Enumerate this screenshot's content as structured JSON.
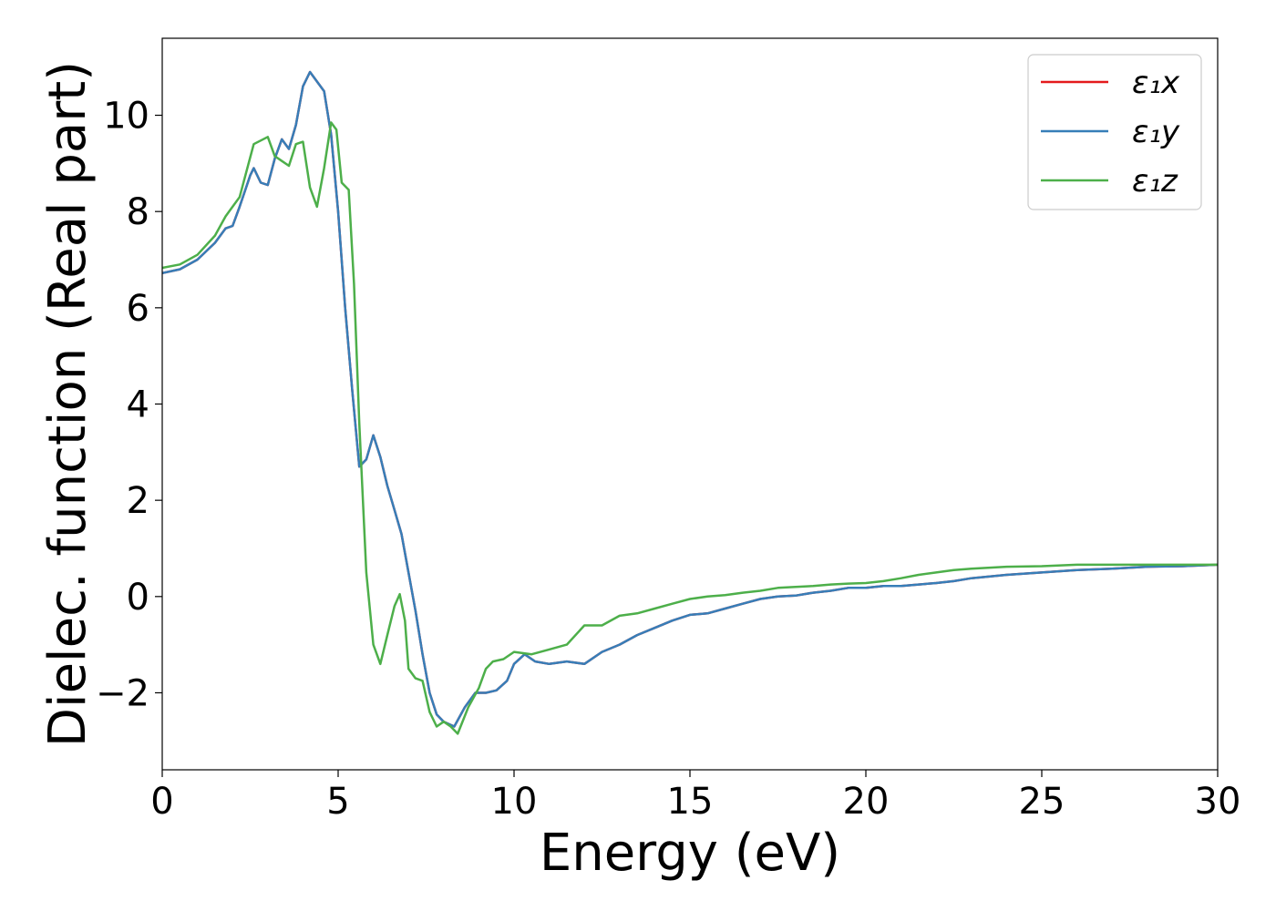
{
  "chart_data": {
    "type": "line",
    "title": "",
    "xlabel": "Energy (eV)",
    "ylabel": "Dielec. function (Real part)",
    "xlim": [
      0,
      30
    ],
    "ylim": [
      -3.6,
      11.6
    ],
    "xticks": [
      0,
      5,
      10,
      15,
      20,
      25,
      30
    ],
    "xtick_labels": [
      "0",
      "5",
      "10",
      "15",
      "20",
      "25",
      "30"
    ],
    "yticks": [
      -2,
      0,
      2,
      4,
      6,
      8,
      10
    ],
    "ytick_labels": [
      "−2",
      "0",
      "2",
      "4",
      "6",
      "8",
      "10"
    ],
    "grid": false,
    "legend_position": "top-right",
    "series": [
      {
        "name": "ε₁x",
        "color": "#e41a1c",
        "x": [
          0,
          0.5,
          1.0,
          1.5,
          1.8,
          2.0,
          2.2,
          2.5,
          2.6,
          2.8,
          3.0,
          3.2,
          3.4,
          3.6,
          3.8,
          4.0,
          4.2,
          4.4,
          4.6,
          4.8,
          5.0,
          5.2,
          5.4,
          5.6,
          5.8,
          6.0,
          6.2,
          6.4,
          6.6,
          6.8,
          7.0,
          7.2,
          7.4,
          7.6,
          7.8,
          8.0,
          8.3,
          8.6,
          8.9,
          9.2,
          9.5,
          9.8,
          10.0,
          10.3,
          10.6,
          11.0,
          11.5,
          12.0,
          12.5,
          13.0,
          13.5,
          14.0,
          14.5,
          15.0,
          15.5,
          16.0,
          16.5,
          17.0,
          17.5,
          18.0,
          18.5,
          19.0,
          19.5,
          20.0,
          20.5,
          21.0,
          21.5,
          22.0,
          22.5,
          23.0,
          24.0,
          25.0,
          26.0,
          27.0,
          28.0,
          29.0,
          30.0
        ],
        "y": [
          6.72,
          6.8,
          7.0,
          7.35,
          7.65,
          7.7,
          8.1,
          8.75,
          8.9,
          8.6,
          8.55,
          9.1,
          9.5,
          9.3,
          9.8,
          10.6,
          10.9,
          10.7,
          10.5,
          9.6,
          8.0,
          6.0,
          4.3,
          2.7,
          2.85,
          3.35,
          2.9,
          2.3,
          1.8,
          1.3,
          0.5,
          -0.3,
          -1.2,
          -2.0,
          -2.45,
          -2.6,
          -2.7,
          -2.3,
          -2.0,
          -2.0,
          -1.95,
          -1.75,
          -1.4,
          -1.2,
          -1.35,
          -1.4,
          -1.35,
          -1.4,
          -1.15,
          -1.0,
          -0.8,
          -0.65,
          -0.5,
          -0.38,
          -0.35,
          -0.25,
          -0.15,
          -0.05,
          0.0,
          0.02,
          0.08,
          0.12,
          0.18,
          0.18,
          0.22,
          0.22,
          0.25,
          0.28,
          0.32,
          0.38,
          0.45,
          0.5,
          0.55,
          0.58,
          0.62,
          0.63,
          0.66
        ]
      },
      {
        "name": "ε₁y",
        "color": "#377eb8",
        "x": [
          0,
          0.5,
          1.0,
          1.5,
          1.8,
          2.0,
          2.2,
          2.5,
          2.6,
          2.8,
          3.0,
          3.2,
          3.4,
          3.6,
          3.8,
          4.0,
          4.2,
          4.4,
          4.6,
          4.8,
          5.0,
          5.2,
          5.4,
          5.6,
          5.8,
          6.0,
          6.2,
          6.4,
          6.6,
          6.8,
          7.0,
          7.2,
          7.4,
          7.6,
          7.8,
          8.0,
          8.3,
          8.6,
          8.9,
          9.2,
          9.5,
          9.8,
          10.0,
          10.3,
          10.6,
          11.0,
          11.5,
          12.0,
          12.5,
          13.0,
          13.5,
          14.0,
          14.5,
          15.0,
          15.5,
          16.0,
          16.5,
          17.0,
          17.5,
          18.0,
          18.5,
          19.0,
          19.5,
          20.0,
          20.5,
          21.0,
          21.5,
          22.0,
          22.5,
          23.0,
          24.0,
          25.0,
          26.0,
          27.0,
          28.0,
          29.0,
          30.0
        ],
        "y": [
          6.72,
          6.8,
          7.0,
          7.35,
          7.65,
          7.7,
          8.1,
          8.75,
          8.9,
          8.6,
          8.55,
          9.1,
          9.5,
          9.3,
          9.8,
          10.6,
          10.9,
          10.7,
          10.5,
          9.6,
          8.0,
          6.0,
          4.3,
          2.7,
          2.85,
          3.35,
          2.9,
          2.3,
          1.8,
          1.3,
          0.5,
          -0.3,
          -1.2,
          -2.0,
          -2.45,
          -2.6,
          -2.7,
          -2.3,
          -2.0,
          -2.0,
          -1.95,
          -1.75,
          -1.4,
          -1.2,
          -1.35,
          -1.4,
          -1.35,
          -1.4,
          -1.15,
          -1.0,
          -0.8,
          -0.65,
          -0.5,
          -0.38,
          -0.35,
          -0.25,
          -0.15,
          -0.05,
          0.0,
          0.02,
          0.08,
          0.12,
          0.18,
          0.18,
          0.22,
          0.22,
          0.25,
          0.28,
          0.32,
          0.38,
          0.45,
          0.5,
          0.55,
          0.58,
          0.62,
          0.63,
          0.66
        ]
      },
      {
        "name": "ε₁z",
        "color": "#4daf4a",
        "x": [
          0,
          0.5,
          1.0,
          1.5,
          1.8,
          2.0,
          2.2,
          2.6,
          3.0,
          3.2,
          3.4,
          3.6,
          3.8,
          4.0,
          4.2,
          4.4,
          4.6,
          4.8,
          4.95,
          5.1,
          5.3,
          5.45,
          5.6,
          5.8,
          6.0,
          6.2,
          6.4,
          6.6,
          6.75,
          6.9,
          7.0,
          7.2,
          7.4,
          7.6,
          7.8,
          8.0,
          8.2,
          8.4,
          8.7,
          9.0,
          9.2,
          9.4,
          9.7,
          10.0,
          10.5,
          11.0,
          11.5,
          12.0,
          12.5,
          13.0,
          13.5,
          14.0,
          14.5,
          15.0,
          15.5,
          16.0,
          16.5,
          17.0,
          17.5,
          18.0,
          18.5,
          19.0,
          19.5,
          20.0,
          20.5,
          21.0,
          21.5,
          22.0,
          22.5,
          23.0,
          24.0,
          25.0,
          26.0,
          27.0,
          28.0,
          29.0,
          30.0
        ],
        "y": [
          6.83,
          6.9,
          7.1,
          7.5,
          7.9,
          8.1,
          8.3,
          9.4,
          9.55,
          9.15,
          9.05,
          8.95,
          9.4,
          9.45,
          8.5,
          8.1,
          8.9,
          9.85,
          9.7,
          8.6,
          8.45,
          6.5,
          3.6,
          0.5,
          -1.0,
          -1.4,
          -0.8,
          -0.2,
          0.05,
          -0.5,
          -1.5,
          -1.7,
          -1.75,
          -2.4,
          -2.7,
          -2.6,
          -2.7,
          -2.85,
          -2.3,
          -1.9,
          -1.5,
          -1.35,
          -1.3,
          -1.15,
          -1.2,
          -1.1,
          -1.0,
          -0.6,
          -0.6,
          -0.4,
          -0.35,
          -0.25,
          -0.15,
          -0.05,
          0.0,
          0.03,
          0.08,
          0.12,
          0.18,
          0.2,
          0.22,
          0.25,
          0.27,
          0.28,
          0.32,
          0.38,
          0.45,
          0.5,
          0.55,
          0.58,
          0.62,
          0.63,
          0.66,
          0.66,
          0.66,
          0.66,
          0.66
        ]
      }
    ]
  }
}
